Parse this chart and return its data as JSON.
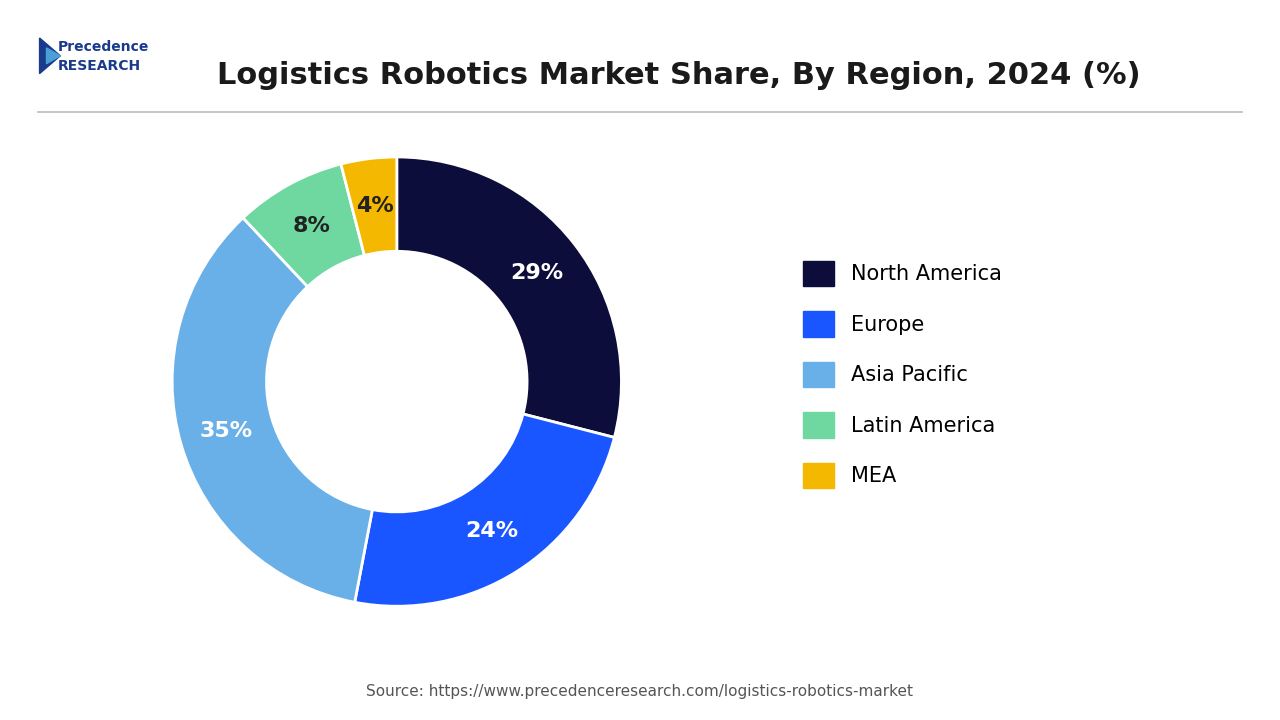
{
  "title": "Logistics Robotics Market Share, By Region, 2024 (%)",
  "source_text": "Source: https://www.precedenceresearch.com/logistics-robotics-market",
  "segments": [
    {
      "label": "North America",
      "value": 29,
      "color": "#0d0d3b",
      "text_color": "#ffffff"
    },
    {
      "label": "Europe",
      "value": 24,
      "color": "#1a56ff",
      "text_color": "#ffffff"
    },
    {
      "label": "Asia Pacific",
      "value": 35,
      "color": "#6ab0e8",
      "text_color": "#ffffff"
    },
    {
      "label": "Latin America",
      "value": 8,
      "color": "#6ed8a0",
      "text_color": "#222222"
    },
    {
      "label": "MEA",
      "value": 4,
      "color": "#f5b800",
      "text_color": "#222222"
    }
  ],
  "background_color": "#ffffff",
  "title_fontsize": 22,
  "label_fontsize": 16,
  "legend_fontsize": 15,
  "source_fontsize": 11,
  "donut_width": 0.42,
  "start_angle": 90
}
